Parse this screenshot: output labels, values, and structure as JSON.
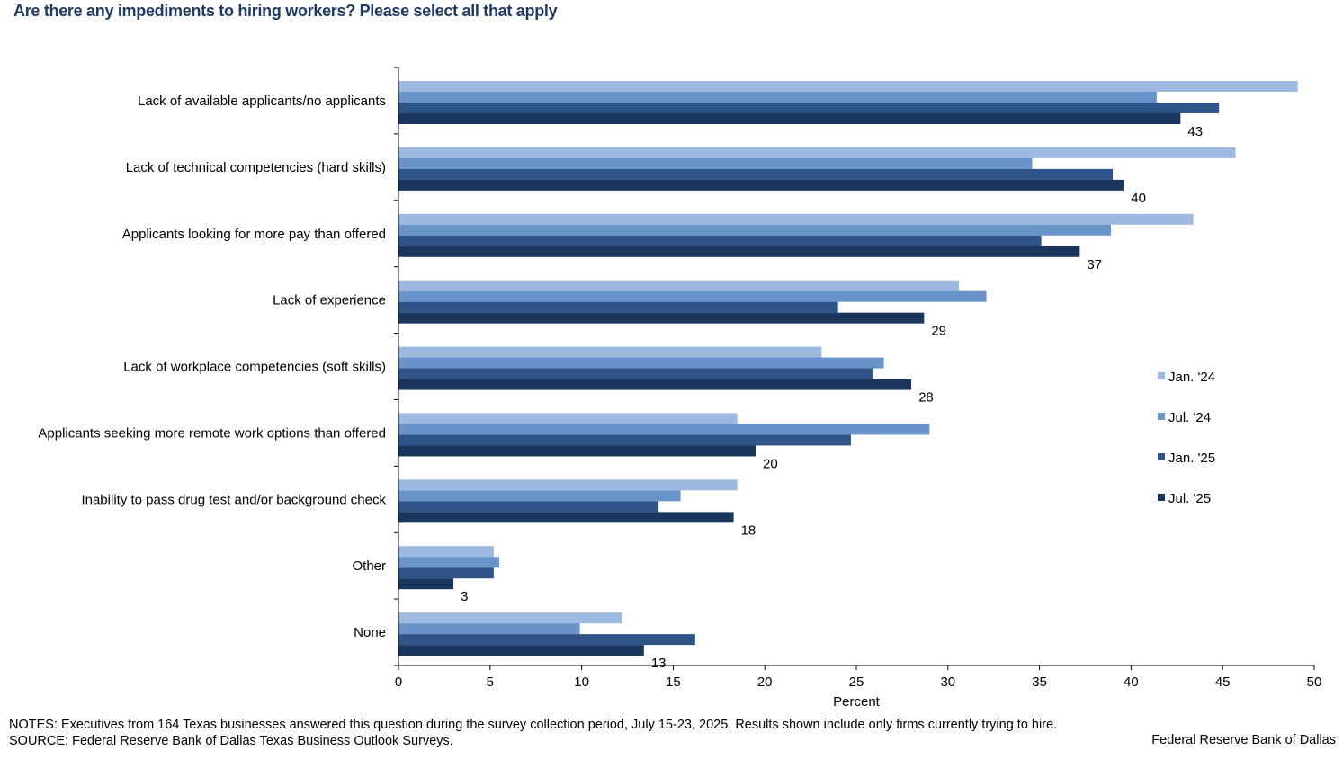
{
  "title": "Are there any impediments to hiring workers? Please select all that apply",
  "notes": "NOTES: Executives from 164 Texas businesses answered this question during the survey collection period, July 15-23, 2025. Results shown include only firms currently  trying to hire.",
  "source_line": "SOURCE: Federal Reserve Bank of Dallas Texas  Business  Outlook  Surveys.",
  "attribution": "Federal Reserve Bank of Dallas",
  "chart_data": {
    "type": "bar",
    "orientation": "horizontal",
    "title": "Are there any impediments to hiring workers? Please select all that apply",
    "xlabel": "Percent",
    "ylabel": "",
    "xlim": [
      0,
      50
    ],
    "xticks": [
      0,
      5,
      10,
      15,
      20,
      25,
      30,
      35,
      40,
      45,
      50
    ],
    "grid": false,
    "legend_position": "right",
    "categories": [
      "Lack of available applicants/no applicants",
      "Lack of technical competencies (hard skills)",
      "Applicants looking for more pay than offered",
      "Lack of experience",
      "Lack of workplace competencies (soft skills)",
      "Applicants seeking more remote work options than offered",
      "Inability to pass drug test and/or background check",
      "Other",
      "None"
    ],
    "series": [
      {
        "name": "Jan. '24",
        "color": "#9db9df",
        "values": [
          49.1,
          45.7,
          43.4,
          30.6,
          23.1,
          18.5,
          18.5,
          5.2,
          12.2
        ]
      },
      {
        "name": "Jul. '24",
        "color": "#6894ca",
        "values": [
          41.4,
          34.6,
          38.9,
          32.1,
          26.5,
          29.0,
          15.4,
          5.5,
          9.9
        ]
      },
      {
        "name": "Jan. '25",
        "color": "#2f5487",
        "values": [
          44.8,
          39.0,
          35.1,
          24.0,
          25.9,
          24.7,
          14.2,
          5.2,
          16.2
        ]
      },
      {
        "name": "Jul. '25",
        "color": "#1b365d",
        "values": [
          42.7,
          39.6,
          37.2,
          28.7,
          28.0,
          19.5,
          18.3,
          3.0,
          13.4
        ]
      }
    ],
    "data_labels": {
      "series": "Jul. '25",
      "values": [
        "43",
        "40",
        "37",
        "29",
        "28",
        "20",
        "18",
        "3",
        "13"
      ]
    }
  }
}
